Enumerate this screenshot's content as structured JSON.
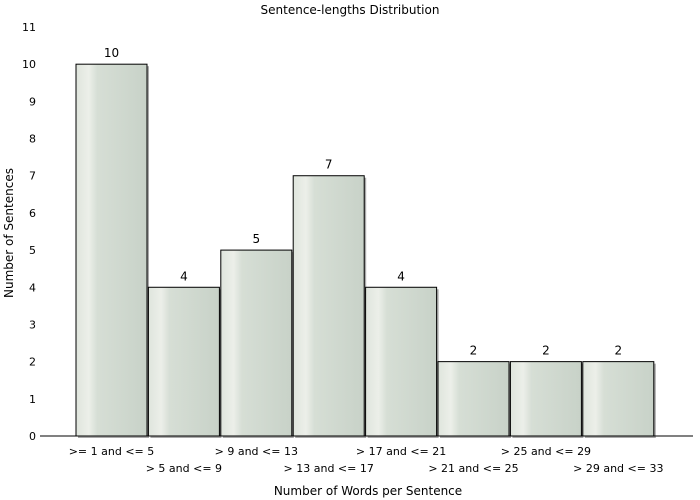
{
  "chart_data": {
    "type": "bar",
    "title": "Sentence-lengths Distribution",
    "xlabel": "Number of Words per Sentence",
    "ylabel": "Number of Sentences",
    "categories": [
      ">= 1 and <= 5",
      "> 5 and <= 9",
      "> 9 and <= 13",
      "> 13 and <= 17",
      "> 17 and <= 21",
      "> 21 and <= 25",
      "> 25 and <= 29",
      "> 29 and <= 33"
    ],
    "values": [
      10,
      4,
      5,
      7,
      4,
      2,
      2,
      2
    ],
    "ylim": [
      0,
      11
    ],
    "yticks": [
      "0",
      "1",
      "2",
      "3",
      "4",
      "5",
      "6",
      "7",
      "8",
      "9",
      "10",
      "11"
    ],
    "grid": false,
    "legend": "none",
    "colors": {
      "bar_light": "#e4e9e2",
      "bar_mid": "#d3dcd3",
      "bar_dark": "#c9d3c9",
      "bar_stroke": "#000000",
      "axis": "#000000"
    }
  }
}
